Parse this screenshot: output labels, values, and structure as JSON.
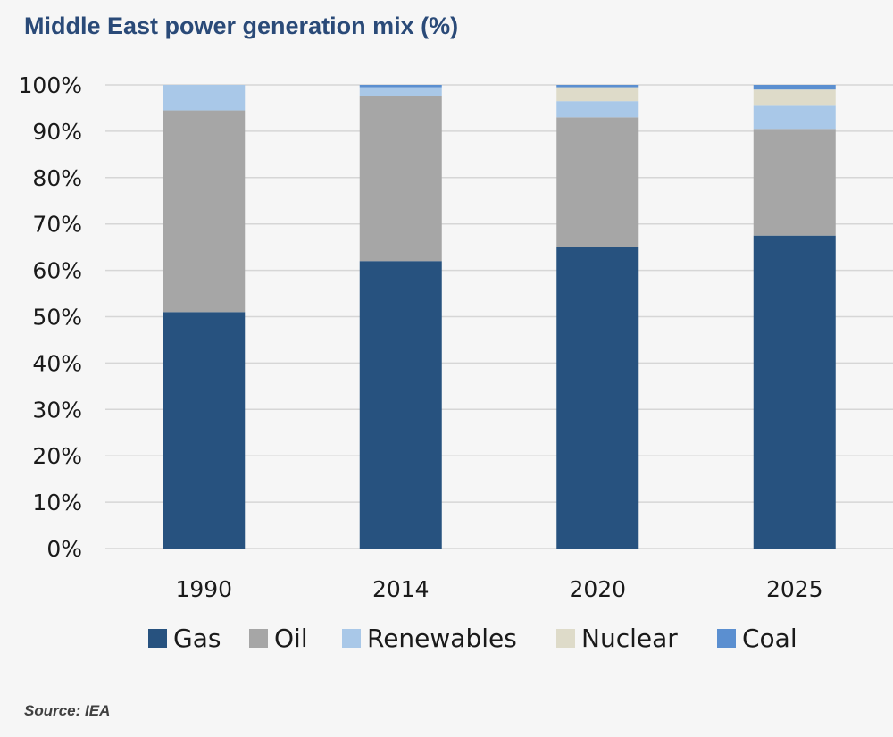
{
  "title": "Middle East power generation mix (%)",
  "source": "Source: IEA",
  "chart_data": {
    "type": "bar",
    "stacked": true,
    "title": "Middle East power generation mix (%)",
    "xlabel": "",
    "ylabel": "",
    "categories": [
      "1990",
      "2014",
      "2020",
      "2025"
    ],
    "ylim": [
      0,
      100
    ],
    "yticks": [
      "0%",
      "10%",
      "20%",
      "30%",
      "40%",
      "50%",
      "60%",
      "70%",
      "80%",
      "90%",
      "100%"
    ],
    "grid": true,
    "legend_position": "bottom",
    "series": [
      {
        "name": "Gas",
        "color": "#27527f",
        "values": [
          51,
          62,
          65,
          67.5
        ]
      },
      {
        "name": "Oil",
        "color": "#a6a6a6",
        "values": [
          43.5,
          35.5,
          28,
          23
        ]
      },
      {
        "name": "Renewables",
        "color": "#a9c8e8",
        "values": [
          5.5,
          2,
          3.5,
          5
        ]
      },
      {
        "name": "Nuclear",
        "color": "#dedbc9",
        "values": [
          0,
          0,
          3,
          3.5
        ]
      },
      {
        "name": "Coal",
        "color": "#5b8fd0",
        "values": [
          0,
          0.5,
          0.5,
          1
        ]
      }
    ]
  }
}
